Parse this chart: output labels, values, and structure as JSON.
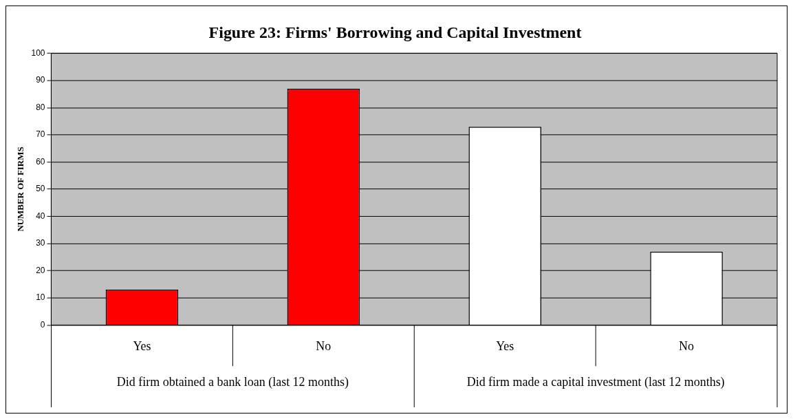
{
  "chart_data": {
    "type": "bar",
    "title": "Figure 23: Firms' Borrowing and Capital Investment",
    "ylabel": "NUMBER OF FIRMS",
    "categories": [
      "Yes",
      "No",
      "Yes",
      "No"
    ],
    "values": [
      13,
      87,
      73,
      27
    ],
    "colors": [
      "#ff0000",
      "#ff0000",
      "#ffffff",
      "#ffffff"
    ],
    "ylim": [
      0,
      100
    ],
    "yticks": [
      0,
      10,
      20,
      30,
      40,
      50,
      60,
      70,
      80,
      90,
      100
    ],
    "grid": "y",
    "annotations": [
      "Did firm obtained a bank loan (last 12 months)",
      "Did firm made a capital investment (last 12 months)"
    ]
  }
}
